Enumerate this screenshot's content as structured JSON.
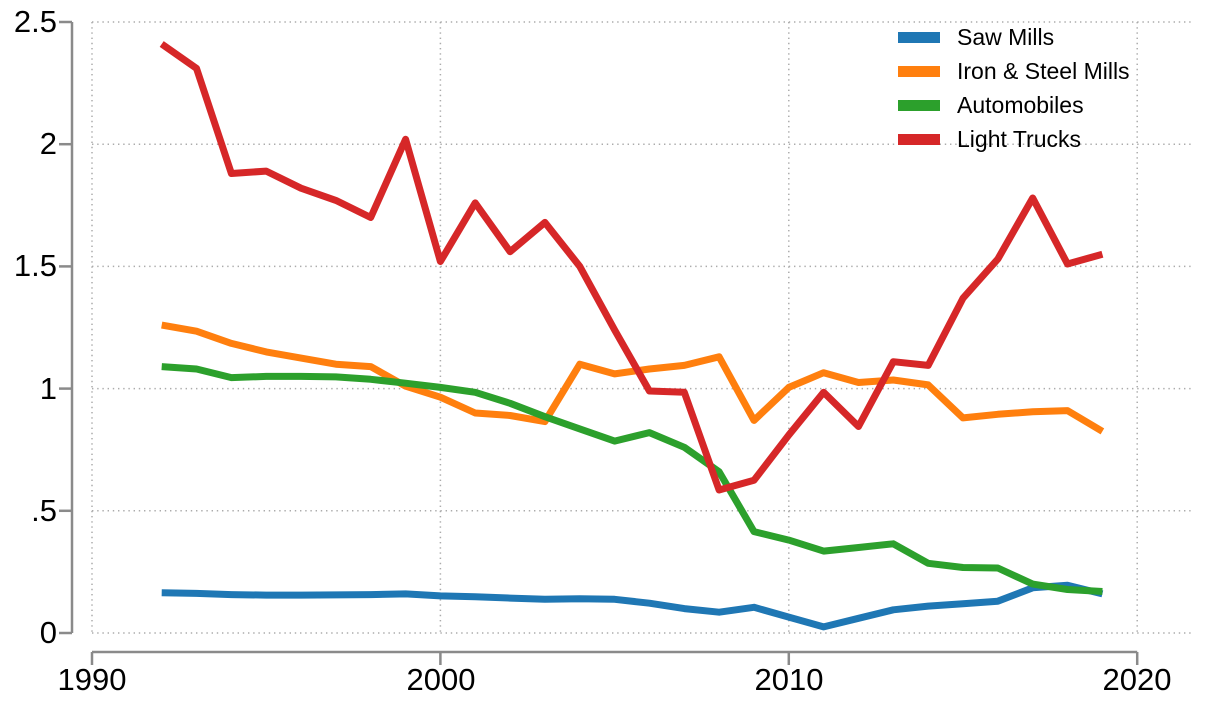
{
  "chart_data": {
    "type": "line",
    "title": "",
    "xlabel": "",
    "ylabel": "",
    "x": [
      1992,
      1993,
      1994,
      1995,
      1996,
      1997,
      1998,
      1999,
      2000,
      2001,
      2002,
      2003,
      2004,
      2005,
      2006,
      2007,
      2008,
      2009,
      2010,
      2011,
      2012,
      2013,
      2014,
      2015,
      2016,
      2017,
      2018,
      2019
    ],
    "xlim": [
      1990,
      2020
    ],
    "ylim": [
      0,
      2.5
    ],
    "x_ticks": [
      1990,
      2000,
      2010,
      2020
    ],
    "x_tick_labels": [
      "1990",
      "2000",
      "2010",
      "2020"
    ],
    "y_ticks": [
      0,
      0.5,
      1,
      1.5,
      2,
      2.5
    ],
    "y_tick_labels": [
      "0",
      ".5",
      "1",
      "1.5",
      "2",
      "2.5"
    ],
    "grid": "dotted horizontal and vertical gridlines at ticks",
    "legend_position": "top-right inside plot, no frame",
    "axis_color": "#8a8a8a",
    "grid_color": "#ababab",
    "series": [
      {
        "name": "Saw Mills",
        "color": "#1f77b4",
        "values": [
          0.165,
          0.162,
          0.157,
          0.155,
          0.155,
          0.156,
          0.157,
          0.16,
          0.152,
          0.148,
          0.143,
          0.138,
          0.14,
          0.138,
          0.122,
          0.1,
          0.085,
          0.105,
          0.065,
          0.025,
          0.06,
          0.095,
          0.11,
          0.12,
          0.13,
          0.185,
          0.195,
          0.16
        ]
      },
      {
        "name": "Iron & Steel Mills",
        "color": "#ff7f0e",
        "values": [
          1.26,
          1.235,
          1.185,
          1.15,
          1.125,
          1.1,
          1.09,
          1.01,
          0.965,
          0.9,
          0.89,
          0.865,
          1.1,
          1.06,
          1.08,
          1.095,
          1.13,
          0.87,
          1.005,
          1.065,
          1.025,
          1.035,
          1.015,
          0.88,
          0.895,
          0.905,
          0.91,
          0.825
        ]
      },
      {
        "name": "Automobiles",
        "color": "#2ca02c",
        "values": [
          1.09,
          1.08,
          1.045,
          1.05,
          1.05,
          1.048,
          1.038,
          1.022,
          1.005,
          0.985,
          0.94,
          0.885,
          0.835,
          0.785,
          0.82,
          0.76,
          0.66,
          0.415,
          0.38,
          0.335,
          0.35,
          0.365,
          0.285,
          0.268,
          0.266,
          0.2,
          0.178,
          0.17
        ]
      },
      {
        "name": "Light Trucks",
        "color": "#d62728",
        "values": [
          2.41,
          2.31,
          1.88,
          1.89,
          1.82,
          1.77,
          1.7,
          2.02,
          1.52,
          1.76,
          1.56,
          1.68,
          1.5,
          1.24,
          0.99,
          0.985,
          0.585,
          0.625,
          0.81,
          0.985,
          0.845,
          1.11,
          1.095,
          1.37,
          1.53,
          1.78,
          1.51,
          1.55
        ]
      }
    ]
  }
}
